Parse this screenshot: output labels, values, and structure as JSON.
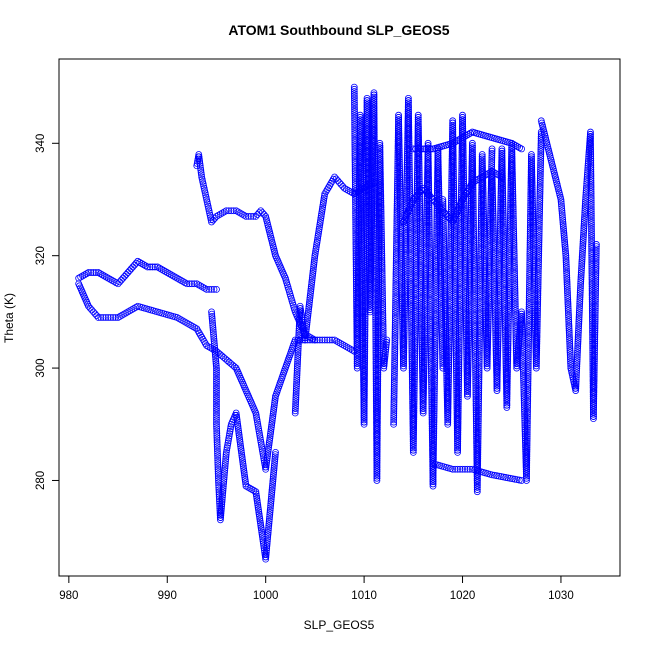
{
  "chart_data": {
    "type": "scatter",
    "title": "ATOM1 Southbound SLP_GEOS5",
    "xlabel": "SLP_GEOS5",
    "ylabel": "Theta (K)",
    "xlim": [
      979,
      1036
    ],
    "ylim": [
      263,
      355
    ],
    "xticks": [
      980,
      990,
      1000,
      1010,
      1020,
      1030
    ],
    "yticks": [
      280,
      300,
      320,
      340
    ],
    "grid": false,
    "legend": "none",
    "marker": "open-circle",
    "colors": {
      "series": "#0000ff"
    },
    "series": [
      {
        "x": [
          981,
          982,
          983,
          984,
          985,
          986,
          987,
          988,
          989,
          990,
          991,
          992,
          993,
          994,
          995
        ],
        "y": [
          316,
          317,
          317,
          316,
          315,
          317,
          319,
          318,
          318,
          317,
          316,
          315,
          315,
          314,
          314
        ]
      },
      {
        "x": [
          981,
          982,
          983,
          985,
          987,
          989,
          991,
          993,
          994,
          995,
          997,
          999,
          1000,
          1001,
          1003,
          1005,
          1007,
          1009
        ],
        "y": [
          315,
          311,
          309,
          309,
          311,
          310,
          309,
          307,
          304,
          303,
          300,
          292,
          282,
          295,
          305,
          305,
          305,
          303
        ]
      },
      {
        "x": [
          993,
          993.2,
          993.5,
          994,
          994.5,
          995,
          996,
          997,
          998,
          999,
          999.5,
          1000,
          1001,
          1002,
          1003,
          1004,
          1005
        ],
        "y": [
          336,
          338,
          334,
          330,
          326,
          327,
          328,
          328,
          327,
          327,
          328,
          327,
          320,
          316,
          310,
          306,
          305
        ]
      },
      {
        "x": [
          994.5,
          995,
          995,
          995.2,
          995.4,
          996,
          996.5,
          997,
          998,
          999,
          1000,
          1001
        ],
        "y": [
          310,
          300,
          290,
          280,
          273,
          285,
          290,
          292,
          279,
          278,
          266,
          285
        ]
      },
      {
        "x": [
          1003,
          1003.5,
          1004,
          1005,
          1006,
          1007,
          1008,
          1009,
          1010,
          1011
        ],
        "y": [
          292,
          311,
          305,
          320,
          331,
          334,
          332,
          331,
          332,
          333
        ]
      },
      {
        "x": [
          1009,
          1009.3,
          1009.6,
          1010,
          1010.3,
          1010.6,
          1011,
          1011.3,
          1011.6,
          1012,
          1012.3
        ],
        "y": [
          350,
          300,
          345,
          290,
          348,
          310,
          349,
          280,
          340,
          300,
          305
        ]
      },
      {
        "x": [
          1013,
          1013.5,
          1014,
          1014.5,
          1015,
          1015.5,
          1016,
          1016.5,
          1017,
          1017.5,
          1018
        ],
        "y": [
          290,
          345,
          300,
          348,
          285,
          345,
          292,
          340,
          279,
          339,
          300
        ]
      },
      {
        "x": [
          1018,
          1018.5,
          1019,
          1019.5,
          1020,
          1020.5,
          1021,
          1021.5,
          1022,
          1022.5,
          1023
        ],
        "y": [
          330,
          290,
          344,
          285,
          345,
          295,
          340,
          278,
          338,
          300,
          339
        ]
      },
      {
        "x": [
          1023,
          1023.5,
          1024,
          1024.5,
          1025,
          1025.5,
          1026,
          1026.5,
          1027,
          1027.5,
          1028
        ],
        "y": [
          335,
          296,
          339,
          293,
          340,
          300,
          310,
          280,
          338,
          300,
          342
        ]
      },
      {
        "x": [
          1028,
          1029,
          1030,
          1030.5,
          1031,
          1031.5,
          1032,
          1032.5,
          1033,
          1033.3,
          1033.6
        ],
        "y": [
          344,
          337,
          330,
          320,
          300,
          296,
          315,
          330,
          342,
          291,
          322
        ]
      },
      {
        "x": [
          1014,
          1015,
          1016,
          1017,
          1018,
          1019,
          1020,
          1021,
          1022,
          1023,
          1024
        ],
        "y": [
          326,
          330,
          332,
          330,
          328,
          326,
          330,
          333,
          334,
          335,
          334
        ]
      },
      {
        "x": [
          1015,
          1017,
          1019,
          1021,
          1023,
          1025,
          1026
        ],
        "y": [
          339,
          339,
          340,
          342,
          341,
          340,
          339
        ]
      },
      {
        "x": [
          1017,
          1019,
          1021,
          1023,
          1026
        ],
        "y": [
          283,
          282,
          282,
          281,
          280
        ]
      }
    ]
  }
}
